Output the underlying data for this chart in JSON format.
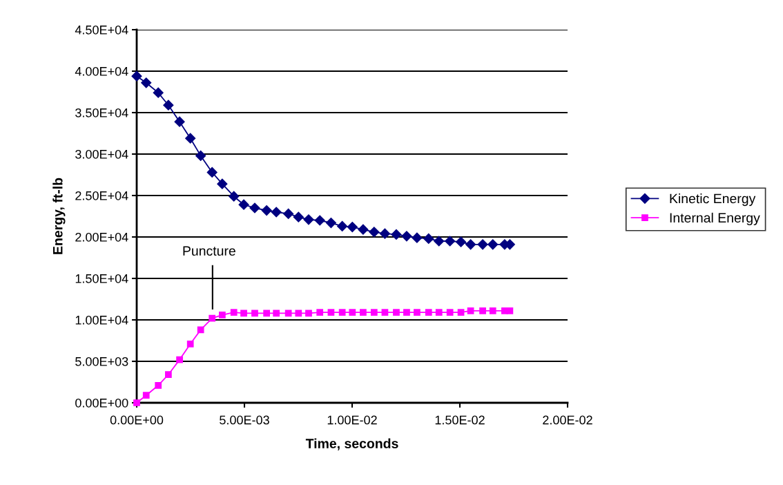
{
  "chart_data": {
    "type": "line",
    "xlabel": "Time, seconds",
    "ylabel": "Energy, ft-lb",
    "x": [
      0,
      0.00044,
      0.001,
      0.00147,
      0.00199,
      0.00249,
      0.00297,
      0.0035,
      0.00397,
      0.00451,
      0.00497,
      0.00548,
      0.00603,
      0.00648,
      0.00704,
      0.00751,
      0.00798,
      0.0085,
      0.00902,
      0.00954,
      0.01001,
      0.01051,
      0.01102,
      0.01152,
      0.01205,
      0.01253,
      0.01301,
      0.01355,
      0.01403,
      0.01454,
      0.01505,
      0.0155,
      0.01606,
      0.01653,
      0.01708,
      0.01732
    ],
    "series": [
      {
        "name": "Kinetic Energy",
        "color": "#000080",
        "marker": "diamond",
        "values": [
          39400,
          38600,
          37400,
          35900,
          33900,
          31900,
          29800,
          27800,
          26400,
          24900,
          23900,
          23500,
          23200,
          23000,
          22800,
          22400,
          22100,
          22000,
          21700,
          21300,
          21200,
          20900,
          20600,
          20400,
          20300,
          20100,
          19900,
          19800,
          19500,
          19500,
          19400,
          19100,
          19100,
          19100,
          19100,
          19100
        ]
      },
      {
        "name": "Internal Energy",
        "color": "#ff00ff",
        "marker": "square",
        "values": [
          0,
          900,
          2100,
          3400,
          5200,
          7100,
          8800,
          10200,
          10600,
          10900,
          10800,
          10800,
          10800,
          10800,
          10800,
          10800,
          10800,
          10900,
          10900,
          10900,
          10900,
          10900,
          10900,
          10900,
          10900,
          10900,
          10900,
          10900,
          10900,
          10900,
          10900,
          11100,
          11100,
          11100,
          11100,
          11100
        ]
      }
    ],
    "annotations": [
      "Puncture"
    ],
    "xlim": [
      0,
      0.02
    ],
    "xticks": [
      {
        "value": 0,
        "label": "0.00E+00"
      },
      {
        "value": 0.005,
        "label": "5.00E-03"
      },
      {
        "value": 0.01,
        "label": "1.00E-02"
      },
      {
        "value": 0.015,
        "label": "1.50E-02"
      },
      {
        "value": 0.02,
        "label": "2.00E-02"
      }
    ],
    "ylim": [
      0,
      45000
    ],
    "yticks": [
      {
        "value": 0,
        "label": "0.00E+00"
      },
      {
        "value": 5000,
        "label": "5.00E+03"
      },
      {
        "value": 10000,
        "label": "1.00E+04"
      },
      {
        "value": 15000,
        "label": "1.50E+04"
      },
      {
        "value": 20000,
        "label": "2.00E+04"
      },
      {
        "value": 25000,
        "label": "2.50E+04"
      },
      {
        "value": 30000,
        "label": "3.00E+04"
      },
      {
        "value": 35000,
        "label": "3.50E+04"
      },
      {
        "value": 40000,
        "label": "4.00E+04"
      },
      {
        "value": 45000,
        "label": "4.50E+04"
      }
    ],
    "grid": "y",
    "legend": "right",
    "line_style": "solid"
  }
}
